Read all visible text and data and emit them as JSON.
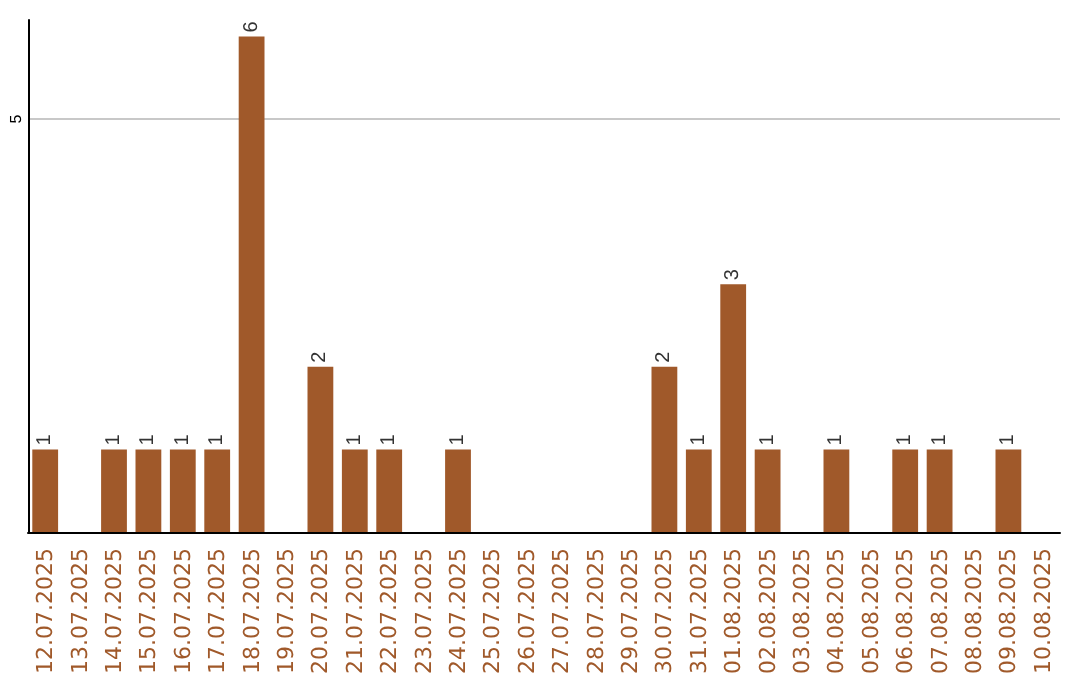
{
  "chart_data": {
    "type": "bar",
    "categories": [
      "12.07.2025",
      "13.07.2025",
      "14.07.2025",
      "15.07.2025",
      "16.07.2025",
      "17.07.2025",
      "18.07.2025",
      "19.07.2025",
      "20.07.2025",
      "21.07.2025",
      "22.07.2025",
      "23.07.2025",
      "24.07.2025",
      "25.07.2025",
      "26.07.2025",
      "27.07.2025",
      "28.07.2025",
      "29.07.2025",
      "30.07.2025",
      "31.07.2025",
      "01.08.2025",
      "02.08.2025",
      "03.08.2025",
      "04.08.2025",
      "05.08.2025",
      "06.08.2025",
      "07.08.2025",
      "08.08.2025",
      "09.08.2025",
      "10.08.2025"
    ],
    "values": [
      1,
      0,
      1,
      1,
      1,
      1,
      6,
      0,
      2,
      1,
      1,
      0,
      1,
      0,
      0,
      0,
      0,
      0,
      2,
      1,
      3,
      1,
      0,
      1,
      0,
      1,
      1,
      0,
      1,
      0
    ],
    "value_labels": [
      "1",
      null,
      "1",
      "1",
      "1",
      "1",
      "6",
      null,
      "2",
      "1",
      "1",
      null,
      "1",
      null,
      null,
      null,
      null,
      null,
      "2",
      "1",
      "3",
      "1",
      null,
      "1",
      null,
      "1",
      "1",
      null,
      "1",
      null
    ],
    "color": "#a0592a",
    "ylim": [
      0,
      6.2
    ],
    "yticks": [
      5
    ],
    "grid": "y"
  }
}
